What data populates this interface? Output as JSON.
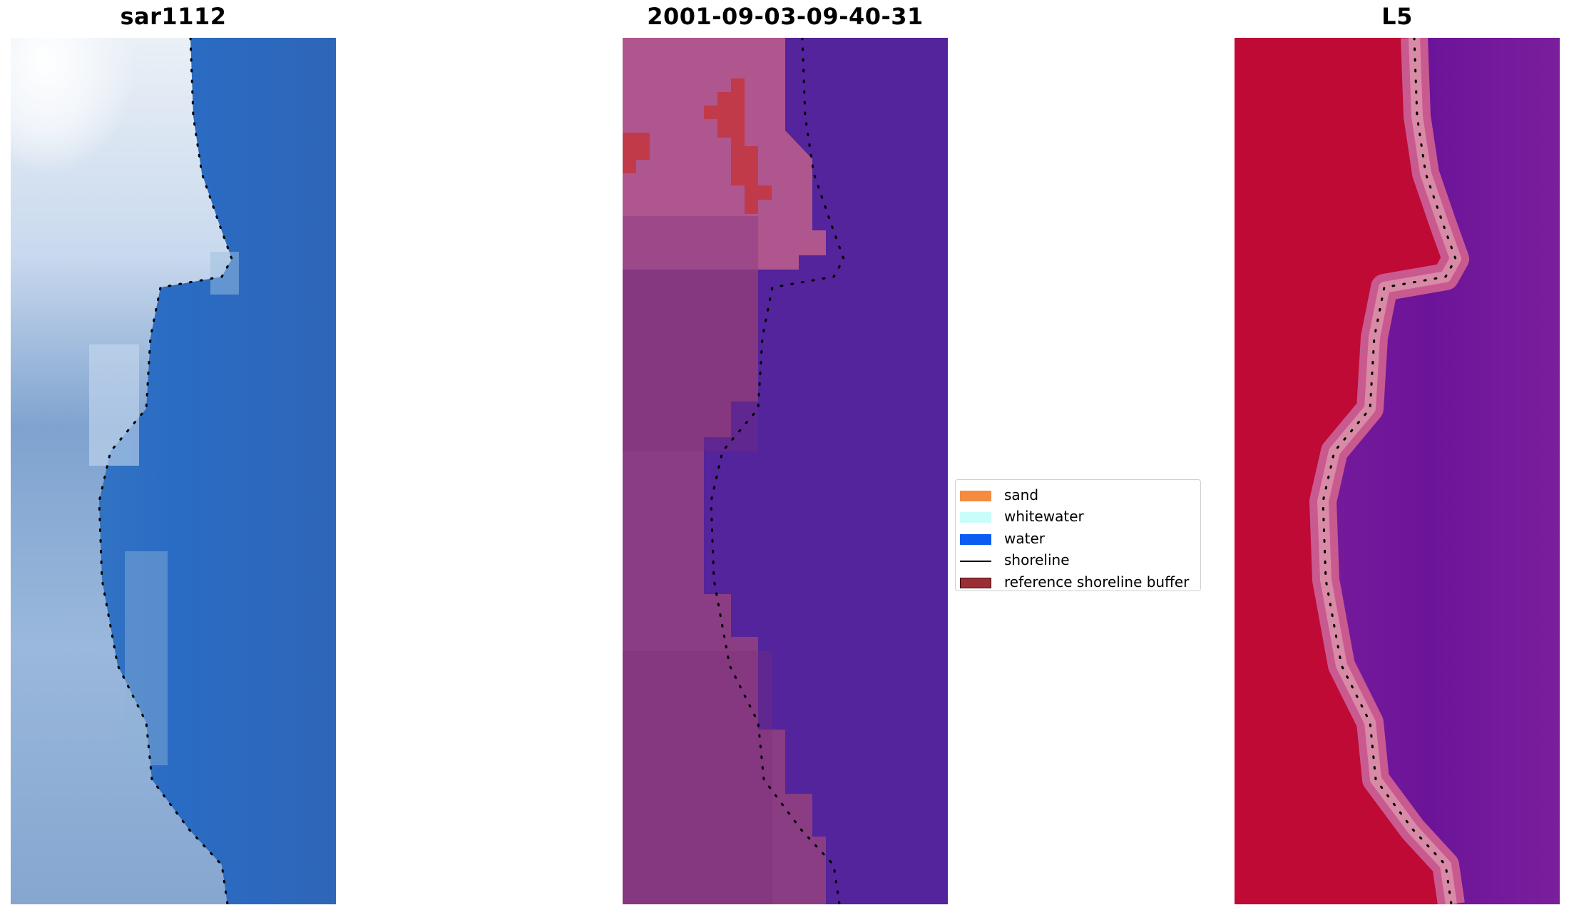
{
  "panels": [
    {
      "title": "sar1112"
    },
    {
      "title": "2001-09-03-09-40-31"
    },
    {
      "title": "L5"
    }
  ],
  "legend": {
    "items": [
      {
        "label": "sand",
        "color": "#f58b3f",
        "kind": "patch"
      },
      {
        "label": "whitewater",
        "color": "#c9fdfa",
        "kind": "patch"
      },
      {
        "label": "water",
        "color": "#0c5cf2",
        "kind": "patch"
      },
      {
        "label": "shoreline",
        "color": "#000000",
        "kind": "line"
      },
      {
        "label": "reference shoreline buffer",
        "color": "#9c2e35",
        "kind": "patch-outline"
      }
    ]
  },
  "colors": {
    "rgb_water": "#2d6fc0",
    "rgb_land": "#8fb0d8",
    "classified_water": "#53249b",
    "classified_land": "#8a3d83",
    "classified_buffer": "#c13a4a",
    "mndwi_land": "#bf0a35",
    "mndwi_water": "#6a1a9a"
  }
}
